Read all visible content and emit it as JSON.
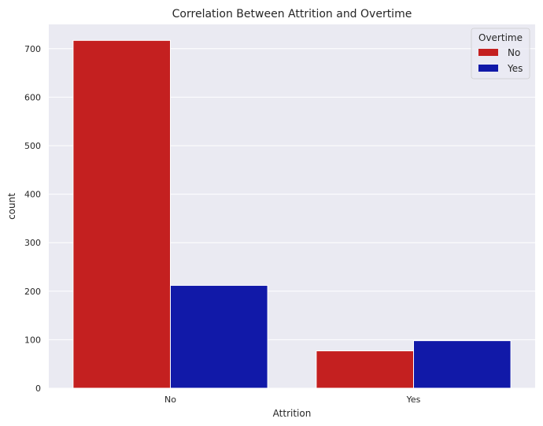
{
  "chart_data": {
    "type": "bar",
    "title": "Correlation Between Attrition and Overtime",
    "xlabel": "Attrition",
    "ylabel": "count",
    "categories": [
      "No",
      "Yes"
    ],
    "series": [
      {
        "name": "No",
        "values": [
          717,
          77
        ],
        "color": "#c42020"
      },
      {
        "name": "Yes",
        "values": [
          212,
          98
        ],
        "color": "#1119a8"
      }
    ],
    "ylim": [
      0,
      750
    ],
    "yticks": [
      0,
      100,
      200,
      300,
      400,
      500,
      600,
      700
    ],
    "legend": {
      "title": "Overtime",
      "placement": "top-right"
    },
    "grid": true,
    "background": "#eaeaf2"
  }
}
